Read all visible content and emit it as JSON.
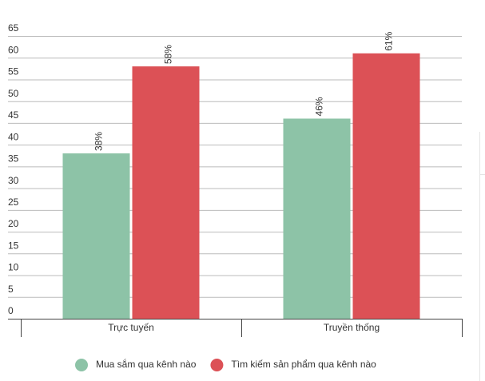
{
  "chart_data": {
    "type": "bar",
    "categories": [
      "Trực tuyến",
      "Truyền thống"
    ],
    "series": [
      {
        "name": "Mua sắm qua kênh nào",
        "color": "#8dc3a7",
        "values": [
          38,
          46
        ],
        "value_labels": [
          "38%",
          "46%"
        ]
      },
      {
        "name": "Tìm kiếm sản phẩm qua kênh nào",
        "color": "#dc5156",
        "values": [
          58,
          61
        ],
        "value_labels": [
          "58%",
          "61%"
        ]
      }
    ],
    "ylim": [
      0,
      65
    ],
    "yticks": [
      0,
      5,
      10,
      15,
      20,
      25,
      30,
      35,
      40,
      45,
      50,
      55,
      60,
      65
    ],
    "grid": true,
    "legend": "bottom"
  }
}
